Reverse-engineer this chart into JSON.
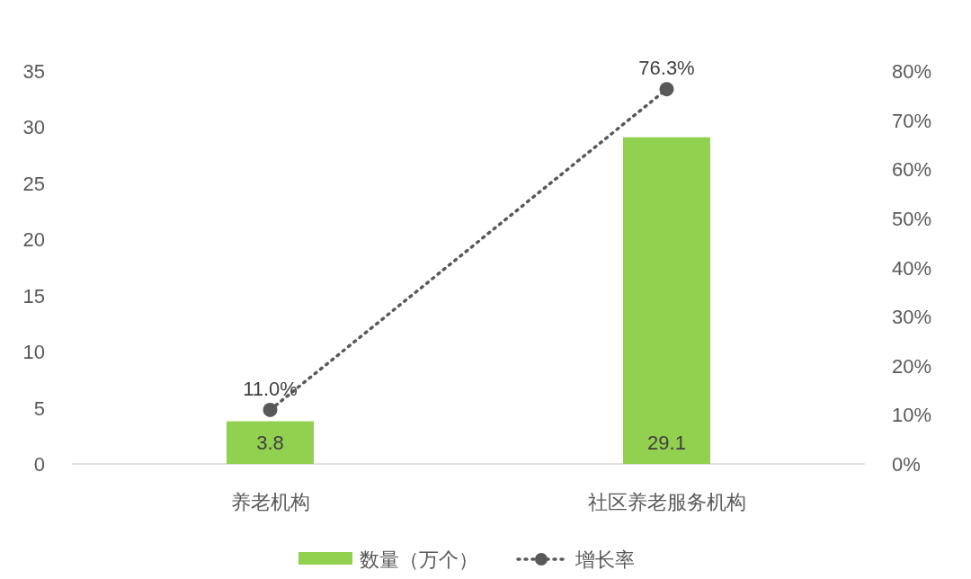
{
  "chart_data": {
    "type": "bar",
    "categories": [
      "养老机构",
      "社区养老服务机构"
    ],
    "series": [
      {
        "name": "数量（万个）",
        "color": "#92d050",
        "values": [
          3.8,
          29.1
        ],
        "value_labels": [
          "3.8",
          "29.1"
        ]
      },
      {
        "name": "增长率",
        "type": "line",
        "axis": "y2",
        "color": "#595959",
        "values": [
          11.0,
          76.3
        ],
        "value_labels": [
          "11.0%",
          "76.3%"
        ],
        "marker": "circle",
        "line_style": "dotted"
      }
    ],
    "ylim": [
      0,
      35
    ],
    "yticks": [
      0,
      5,
      10,
      15,
      20,
      25,
      30,
      35
    ],
    "y2lim": [
      0,
      80
    ],
    "y2ticks": [
      {
        "value": 0,
        "label": "0%"
      },
      {
        "value": 10,
        "label": "10%"
      },
      {
        "value": 20,
        "label": "20%"
      },
      {
        "value": 30,
        "label": "30%"
      },
      {
        "value": 40,
        "label": "40%"
      },
      {
        "value": 50,
        "label": "50%"
      },
      {
        "value": 60,
        "label": "60%"
      },
      {
        "value": 70,
        "label": "70%"
      },
      {
        "value": 80,
        "label": "80%"
      }
    ],
    "grid": false,
    "legend": "bottom"
  }
}
